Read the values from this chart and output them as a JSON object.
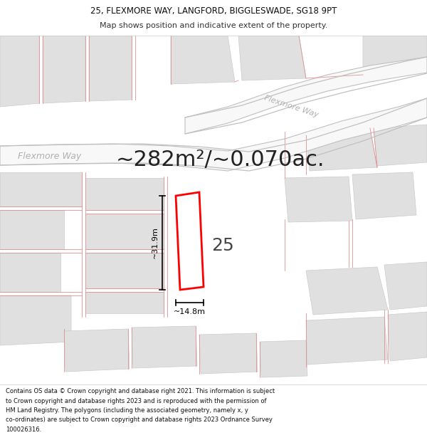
{
  "title_line1": "25, FLEXMORE WAY, LANGFORD, BIGGLESWADE, SG18 9PT",
  "title_line2": "Map shows position and indicative extent of the property.",
  "area_text": "~282m²/~0.070ac.",
  "house_number": "25",
  "dim_vertical": "~31.9m",
  "dim_horizontal": "~14.8m",
  "road_label_left": "Flexmore Way",
  "road_label_diag": "Flexmore Way",
  "footer_text": "Contains OS data © Crown copyright and database right 2021. This information is subject to Crown copyright and database rights 2023 and is reproduced with the permission of HM Land Registry. The polygons (including the associated geometry, namely x, y co-ordinates) are subject to Crown copyright and database rights 2023 Ordnance Survey 100026316.",
  "title_fontsize": 8.5,
  "subtitle_fontsize": 8,
  "area_fontsize": 22,
  "house_fontsize": 18,
  "dim_fontsize": 8,
  "road_label_fontsize": 9,
  "footer_fontsize": 6,
  "bg_color": "#ffffff",
  "title_bg": "#f5f5f5",
  "plot_line_color": "#e09090",
  "road_outline_color": "#c0c0c0",
  "building_color": "#e0e0e0",
  "building_edge": "#cccccc",
  "property_edge": "#ff0000",
  "property_fill": "#ffffff",
  "dim_color": "#000000",
  "road_label_color": "#b0b0b0",
  "area_text_color": "#222222",
  "house_color": "#444444"
}
